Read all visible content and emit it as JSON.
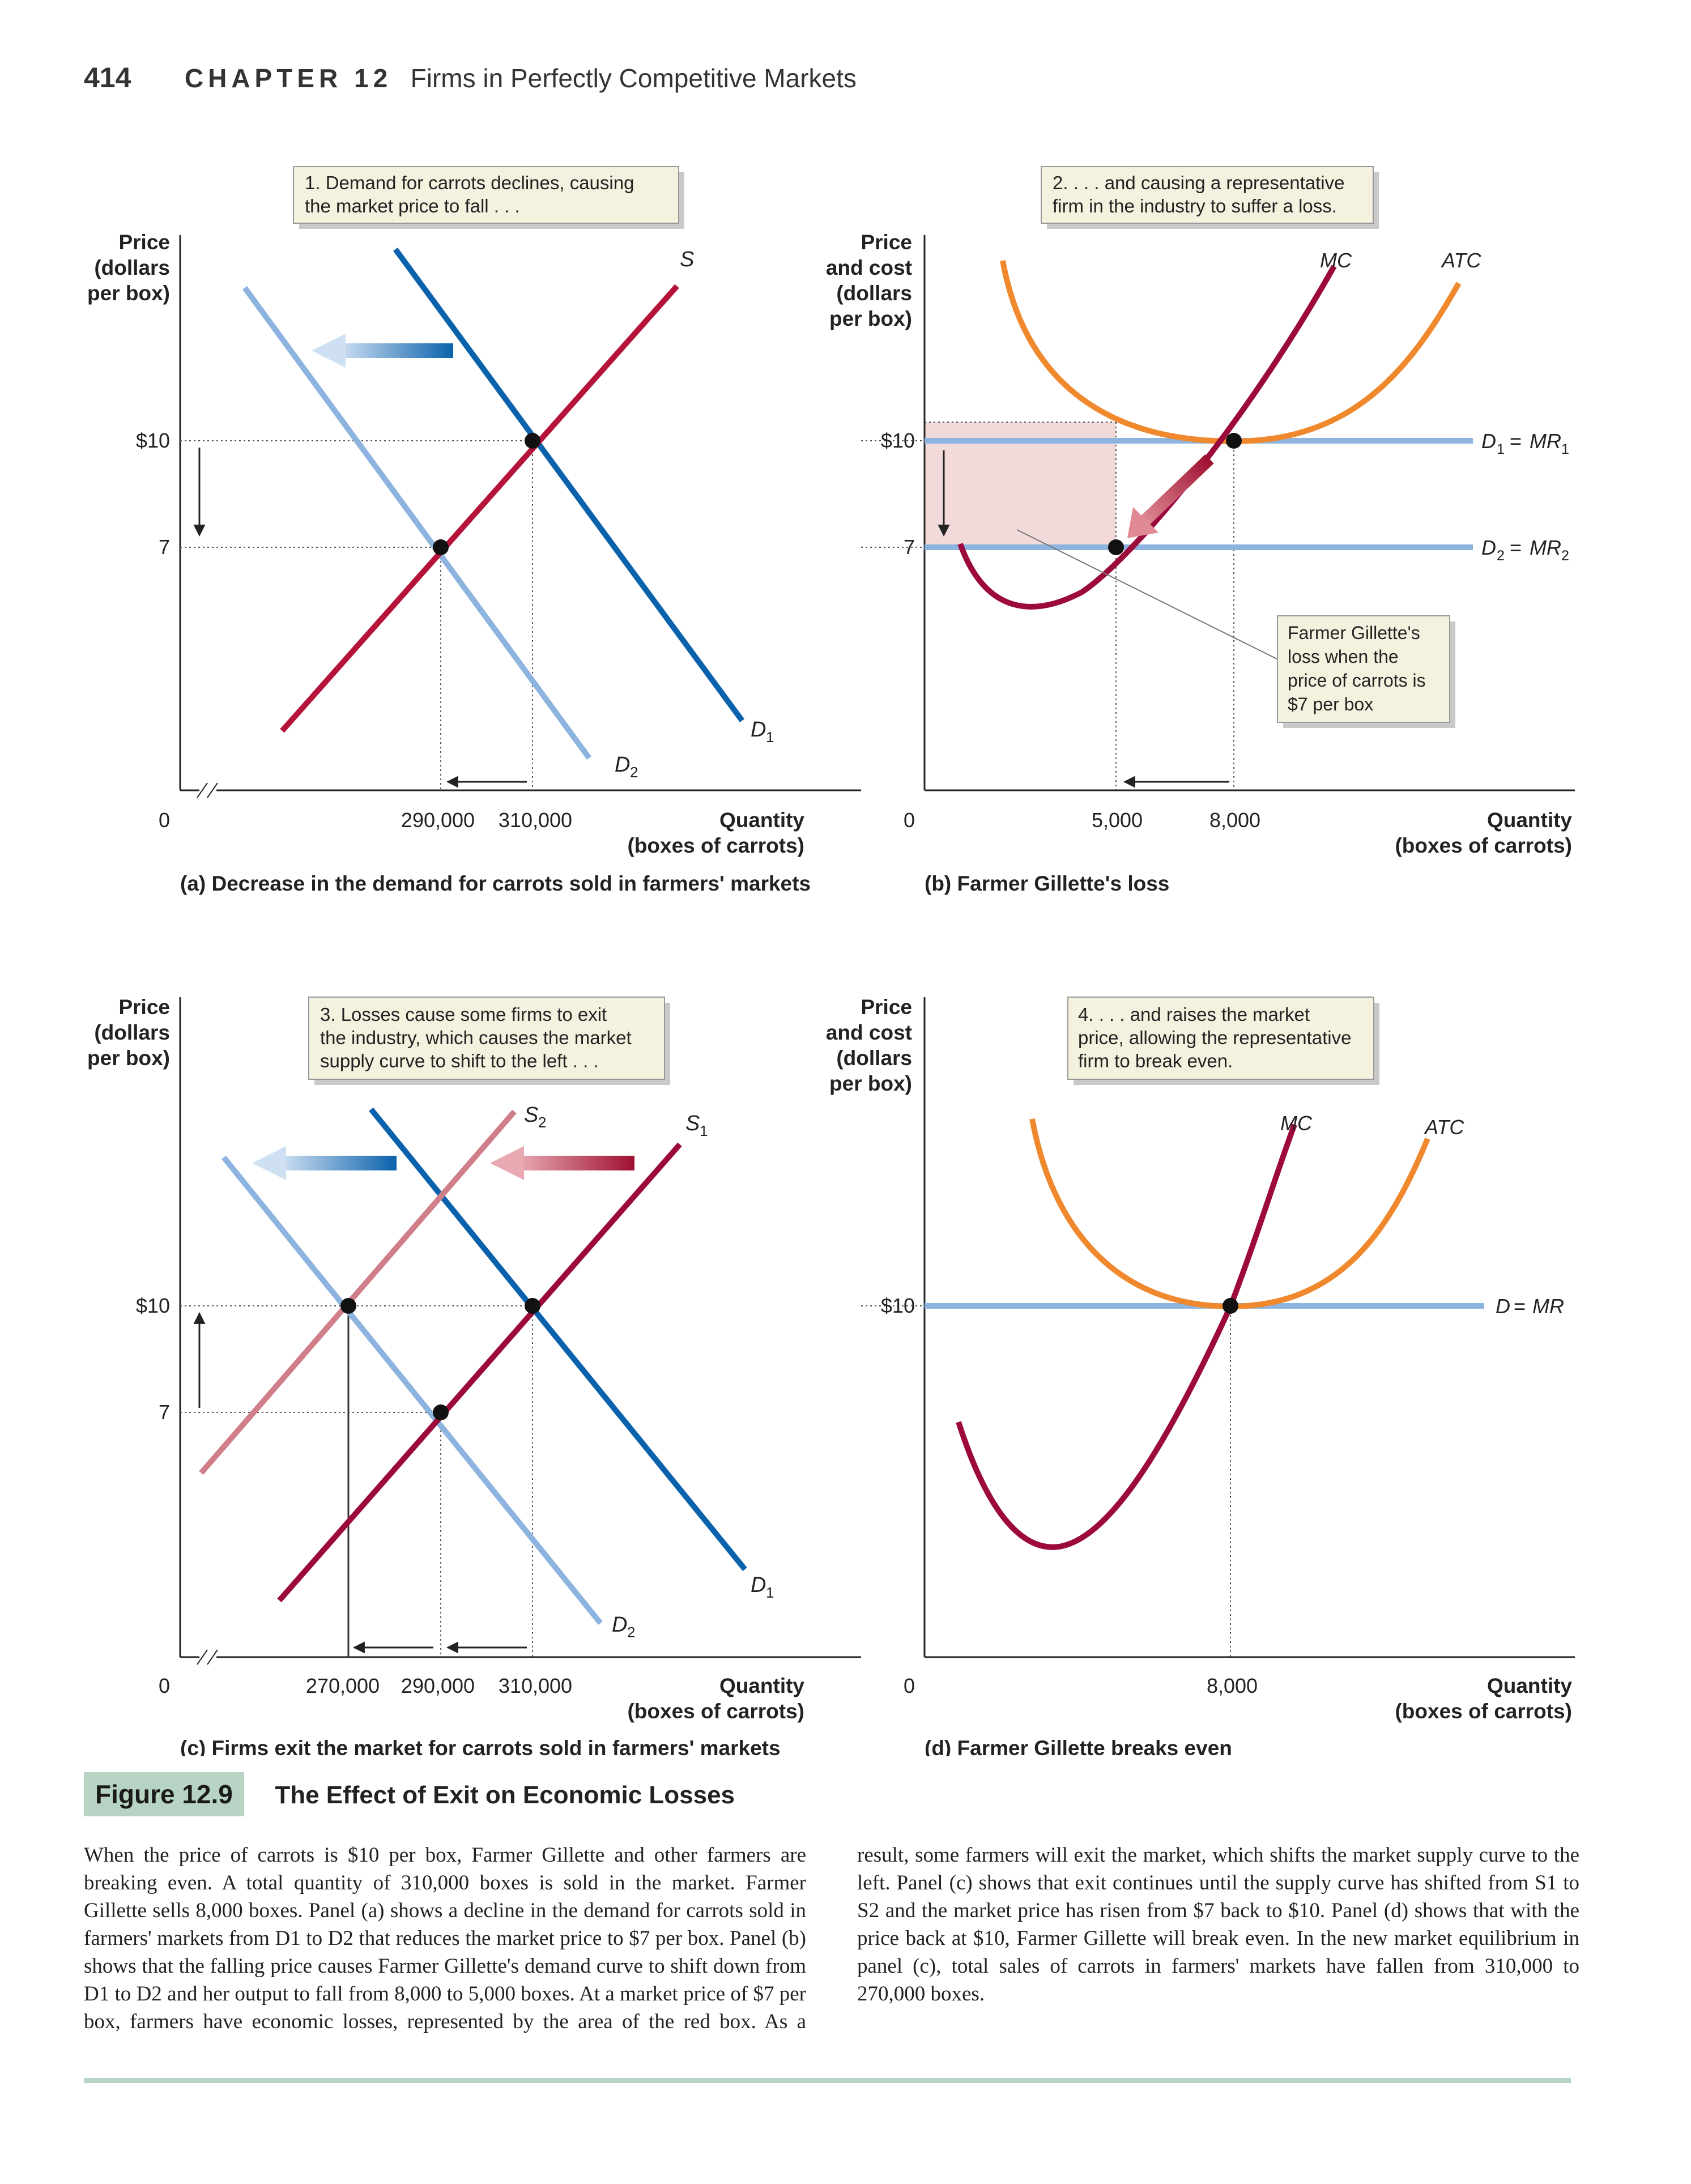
{
  "header": {
    "page_number": "414",
    "chapter": "CHAPTER 12",
    "chapter_title": "Firms in Perfectly Competitive Markets"
  },
  "colors": {
    "demand_old": "#0b62ac",
    "demand_new": "#8db3df",
    "supply": "#b5133a",
    "supply_new": "#d07f8a",
    "mc": "#9c0a3c",
    "atc": "#f0892e",
    "price_line": "#8db3df",
    "loss_box": "#f2dada",
    "arrow_blue": "#2a70c1",
    "arrow_red": "#9e1030",
    "callout_bg": "#f4f1df"
  },
  "chart_data": [
    {
      "id": "a",
      "type": "line",
      "title": "(a) Decrease in the demand for carrots sold in farmers' markets",
      "ylabel": "Price (dollars per box)",
      "xlabel": "Quantity (boxes of carrots)",
      "y_ticks": [
        "$10",
        "7"
      ],
      "origin_label": "0",
      "x_ticks": [
        "290,000",
        "310,000"
      ],
      "callout": "1. Demand for carrots declines, causing the market price to fall . . .",
      "series": [
        {
          "name": "S",
          "points": [
            [
              260000,
              4
            ],
            [
              340000,
              15
            ]
          ]
        },
        {
          "name": "D1",
          "points": [
            [
              290000,
              16.5
            ],
            [
              330000,
              5.3
            ]
          ]
        },
        {
          "name": "D2",
          "points": [
            [
              270000,
              14.2
            ],
            [
              305000,
              4.5
            ]
          ]
        }
      ],
      "equilibria": [
        {
          "q": 310000,
          "p": 10
        },
        {
          "q": 290000,
          "p": 7
        }
      ],
      "price_labels": {
        "p1": "$10",
        "p2": "7"
      }
    },
    {
      "id": "b",
      "type": "line",
      "title": "(b) Farmer Gillette's loss",
      "ylabel": "Price and cost (dollars per box)",
      "xlabel": "Quantity (boxes of carrots)",
      "y_ticks": [
        "$10",
        "7"
      ],
      "origin_label": "0",
      "x_ticks": [
        "5,000",
        "8,000"
      ],
      "callout": "2. . . . and causing a representative firm in the industry to suffer a loss.",
      "loss_label": "Farmer Gillette's loss when the price of carrots is $7 per box",
      "series": [
        {
          "name": "MC"
        },
        {
          "name": "ATC"
        },
        {
          "name": "D1 = MR1",
          "price": 10
        },
        {
          "name": "D2 = MR2",
          "price": 7
        }
      ],
      "equilibria": [
        {
          "q": 8000,
          "p": 10
        },
        {
          "q": 5000,
          "p": 7
        }
      ]
    },
    {
      "id": "c",
      "type": "line",
      "title": "(c) Firms exit the market for carrots sold in farmers' markets",
      "ylabel": "Price (dollars per box)",
      "xlabel": "Quantity (boxes of carrots)",
      "y_ticks": [
        "$10",
        "7"
      ],
      "origin_label": "0",
      "x_ticks": [
        "270,000",
        "290,000",
        "310,000"
      ],
      "callout": "3. Losses cause some firms to exit the industry, which causes the market supply curve to shift to the left . . .",
      "series": [
        {
          "name": "S2"
        },
        {
          "name": "S1"
        },
        {
          "name": "D1"
        },
        {
          "name": "D2"
        }
      ],
      "equilibria": [
        {
          "q": 270000,
          "p": 10
        },
        {
          "q": 290000,
          "p": 7
        },
        {
          "q": 310000,
          "p": 10
        }
      ]
    },
    {
      "id": "d",
      "type": "line",
      "title": "(d) Farmer Gillette breaks even",
      "ylabel": "Price and cost (dollars per box)",
      "xlabel": "Quantity (boxes of carrots)",
      "y_ticks": [
        "$10"
      ],
      "origin_label": "0",
      "x_ticks": [
        "8,000"
      ],
      "callout": "4. . . . and raises the market price, allowing the representative firm to break even.",
      "series": [
        {
          "name": "MC"
        },
        {
          "name": "ATC"
        },
        {
          "name": "D = MR",
          "price": 10
        }
      ],
      "equilibria": [
        {
          "q": 8000,
          "p": 10
        }
      ]
    }
  ],
  "labels": {
    "price_a": [
      "Price",
      "(dollars",
      "per box)"
    ],
    "price_b": [
      "Price",
      "and cost",
      "(dollars",
      "per box)"
    ],
    "qty": [
      "Quantity",
      "(boxes of carrots)"
    ],
    "callout_a": [
      "1. Demand for carrots declines, causing",
      "the market price to fall . . ."
    ],
    "callout_b": [
      "2. . . . and causing a representative",
      "firm in the industry to suffer a loss."
    ],
    "callout_c": [
      "3. Losses cause some firms to exit",
      "the industry, which causes the market",
      "supply curve to shift to the left . . ."
    ],
    "callout_d": [
      "4. . . . and raises the market",
      "price, allowing the representative",
      "firm to break even."
    ],
    "loss_b": [
      "Farmer Gillette's",
      "loss when the",
      "price of carrots is",
      "$7 per box"
    ]
  },
  "figure": {
    "label": "Figure 12.9",
    "title": "The Effect of Exit on Economic Losses"
  },
  "body_text": "When the price of carrots is $10 per box, Farmer Gillette and other farmers are breaking even. A total quantity of 310,000 boxes is sold in the market. Farmer Gillette sells 8,000 boxes. Panel (a) shows a decline in the demand for carrots sold in farmers' markets from D1 to D2 that reduces the market price to $7 per box. Panel (b) shows that the falling price causes Farmer Gillette's demand curve to shift down from D1 to D2 and her output to fall from 8,000 to 5,000 boxes. At a market price of $7 per box, farmers have economic losses, represented by the area of the red box. As a result, some farmers will exit the market, which shifts the market supply curve to the left. Panel (c) shows that exit continues until the supply curve has shifted from S1 to S2 and the market price has risen from $7 back to $10. Panel (d) shows that with the price back at $10, Farmer Gillette will break even. In the new market equilibrium in panel (c), total sales of carrots in farmers' markets have fallen from 310,000 to 270,000 boxes."
}
